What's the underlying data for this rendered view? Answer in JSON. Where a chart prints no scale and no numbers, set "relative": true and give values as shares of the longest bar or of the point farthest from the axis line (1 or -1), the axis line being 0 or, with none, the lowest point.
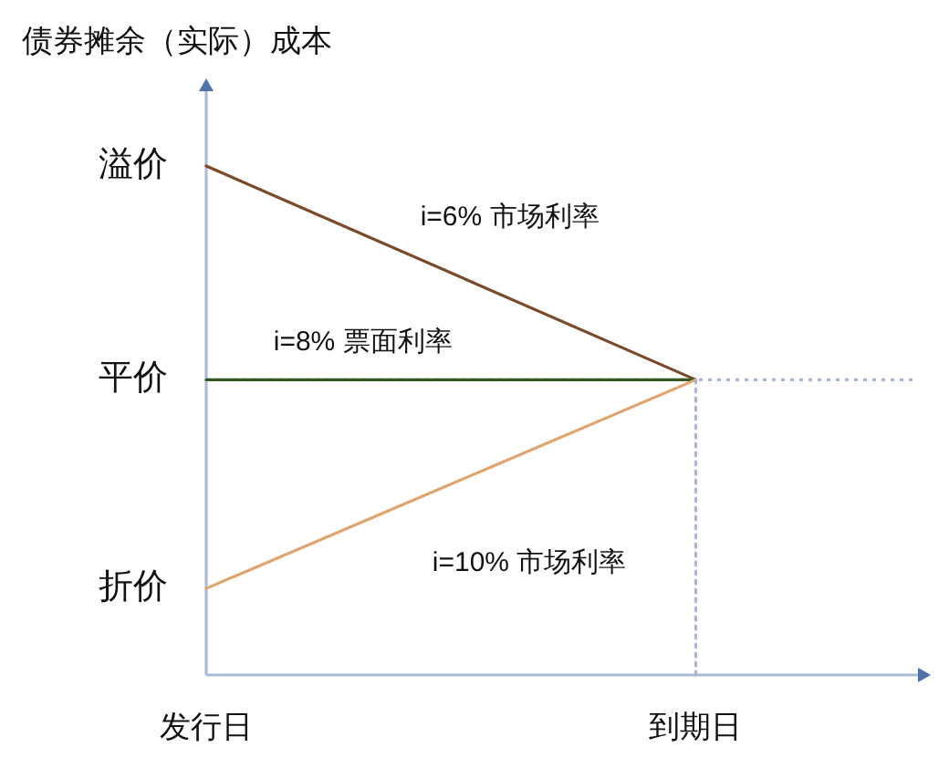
{
  "chart_data": {
    "type": "line",
    "ylabel": "债券摊余（实际）成本",
    "relative": true,
    "categories": [
      "发行日",
      "到期日"
    ],
    "series": [
      {
        "name": "i=6% 市场利率",
        "color": "#7b4a2a",
        "values": [
          1,
          0.58
        ]
      },
      {
        "name": "i=8% 票面利率",
        "color": "#385723",
        "values": [
          0.58,
          0.58
        ]
      },
      {
        "name": "i=10% 市场利率",
        "color": "#e0a46e",
        "values": [
          0.17,
          0.58
        ]
      },
      {
        "color": "#a9b6d4",
        "x": [
          "到期日",
          "到期日"
        ],
        "values": [
          0,
          0.58
        ],
        "line_style": "dotted"
      }
    ],
    "ref_lines": [
      {
        "axis": "y",
        "value": 0.58,
        "color": "#a9b6d4",
        "line_style": "dotted"
      }
    ],
    "annotations": [
      {
        "text": "溢价",
        "x": "发行日",
        "y": 1
      },
      {
        "text": "平价",
        "x": "发行日",
        "y": 0.58
      },
      {
        "text": "折价",
        "x": "发行日",
        "y": 0.17
      }
    ]
  }
}
